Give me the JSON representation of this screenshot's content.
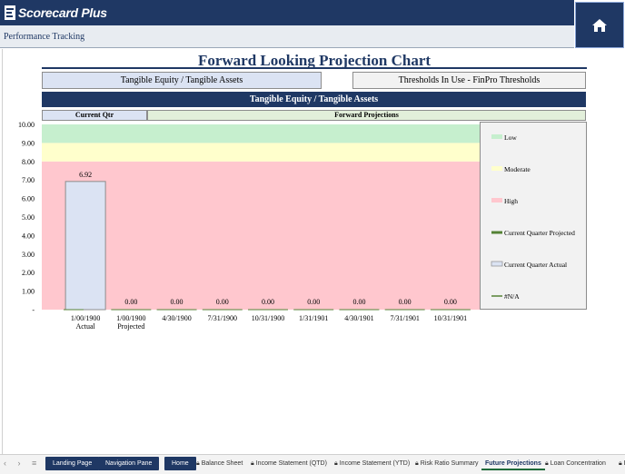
{
  "app": {
    "logo_text": "Scorecard Plus",
    "breadcrumb": "Performance Tracking",
    "home_icon": "home-icon"
  },
  "header": {
    "title": "Forward Looking Projection Chart",
    "metric_label": "Tangible Equity / Tangible Assets",
    "thresholds_label": "Thresholds In Use - FinPro Thresholds",
    "section_title": "Tangible Equity / Tangible Assets",
    "current_qtr_label": "Current Qtr",
    "forward_label": "Forward Projections"
  },
  "colors": {
    "navy": "#1f3864",
    "low": "#c6efce",
    "moderate": "#ffffcc",
    "high": "#ffc7ce",
    "bar": "#dbe3f3"
  },
  "chart_data": {
    "type": "bar",
    "y_ticks": [
      "10.00",
      "9.00",
      "8.00",
      "7.00",
      "6.00",
      "5.00",
      "4.00",
      "3.00",
      "2.00",
      "1.00",
      "-"
    ],
    "ylim": [
      0,
      10
    ],
    "categories": [
      "1/00/1900",
      "1/00/1900",
      "4/30/1900",
      "7/31/1900",
      "10/31/1900",
      "1/31/1901",
      "4/30/1901",
      "7/31/1901",
      "10/31/1901"
    ],
    "category_sublabels": [
      "Actual",
      "Projected",
      "",
      "",
      "",
      "",
      "",
      "",
      ""
    ],
    "values": [
      6.92,
      0.0,
      0.0,
      0.0,
      0.0,
      0.0,
      0.0,
      0.0,
      0.0
    ],
    "value_labels": [
      "6.92",
      "0.00",
      "0.00",
      "0.00",
      "0.00",
      "0.00",
      "0.00",
      "0.00",
      "0.00"
    ],
    "bands": [
      {
        "name": "High",
        "from": 0,
        "to": 8,
        "color": "#ffc7ce"
      },
      {
        "name": "Moderate",
        "from": 8,
        "to": 9,
        "color": "#ffffcc"
      },
      {
        "name": "Low",
        "from": 9,
        "to": 10,
        "color": "#c6efce"
      }
    ],
    "legend": [
      {
        "label": "Low",
        "color": "#c6efce",
        "kind": "swatch"
      },
      {
        "label": "Moderate",
        "color": "#ffffcc",
        "kind": "swatch"
      },
      {
        "label": "High",
        "color": "#ffc7ce",
        "kind": "swatch"
      },
      {
        "label": "Current Quarter Projected",
        "color": "#548235",
        "kind": "line-thick"
      },
      {
        "label": "Current Quarter Actual",
        "color": "#dbe3f3",
        "kind": "box"
      },
      {
        "label": "#N/A",
        "color": "#548235",
        "kind": "line"
      }
    ],
    "legend_position": "right"
  },
  "tabs": [
    {
      "label": "Landing Page",
      "style": "dark",
      "locked": false
    },
    {
      "label": "Navigation Pane",
      "style": "dark",
      "locked": false
    },
    {
      "label": "Home",
      "style": "dark",
      "locked": false
    },
    {
      "label": "Balance Sheet",
      "style": "normal",
      "locked": true
    },
    {
      "label": "Income Statement (QTD)",
      "style": "normal",
      "locked": true
    },
    {
      "label": "Income Statement (YTD)",
      "style": "normal",
      "locked": true
    },
    {
      "label": "Risk Ratio Summary",
      "style": "normal",
      "locked": true
    },
    {
      "label": "Future Projections",
      "style": "active",
      "locked": false
    },
    {
      "label": "Loan Concentration",
      "style": "normal",
      "locked": true
    },
    {
      "label": "D",
      "style": "normal",
      "locked": true
    }
  ]
}
